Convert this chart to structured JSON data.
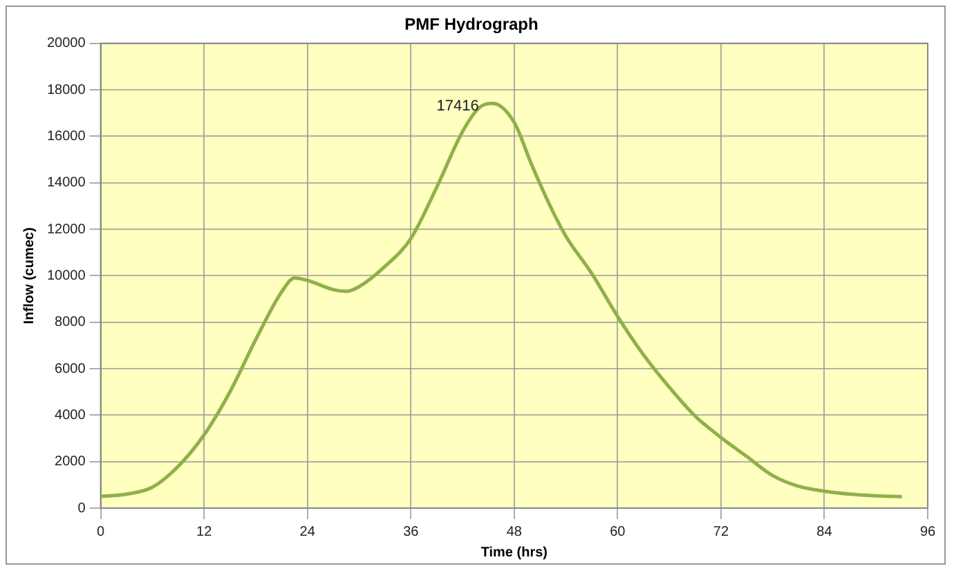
{
  "chart_data": {
    "type": "line",
    "title": "PMF Hydrograph",
    "xlabel": "Time (hrs)",
    "ylabel": "Inflow (cumec)",
    "x": [
      0,
      3,
      6,
      9,
      12,
      15,
      18,
      21,
      22.5,
      24,
      27,
      28.5,
      30,
      33,
      36,
      39,
      42,
      44,
      45.5,
      48,
      50,
      52,
      54,
      57,
      60,
      63,
      66,
      69,
      72,
      75,
      78,
      81,
      84,
      87,
      90,
      93
    ],
    "series": [
      {
        "color": "#8fb04a",
        "values": [
          500,
          600,
          900,
          1800,
          3150,
          5000,
          7250,
          9300,
          9900,
          9800,
          9400,
          9330,
          9530,
          10400,
          11600,
          13800,
          16200,
          17250,
          17416,
          16600,
          14800,
          13140,
          11700,
          10100,
          8250,
          6600,
          5200,
          3960,
          3040,
          2220,
          1400,
          940,
          730,
          600,
          530,
          490
        ]
      }
    ],
    "xlim": [
      0,
      96
    ],
    "xticks": [
      0,
      12,
      24,
      36,
      48,
      60,
      72,
      84,
      96
    ],
    "ylim": [
      0,
      20000
    ],
    "yticks": [
      0,
      2000,
      4000,
      6000,
      8000,
      10000,
      12000,
      14000,
      16000,
      18000,
      20000
    ],
    "grid": true,
    "legend": false,
    "marker": "none",
    "line_style": "solid",
    "annotations": [
      {
        "text": "17416",
        "x": 45.5,
        "y": 17416
      }
    ]
  }
}
